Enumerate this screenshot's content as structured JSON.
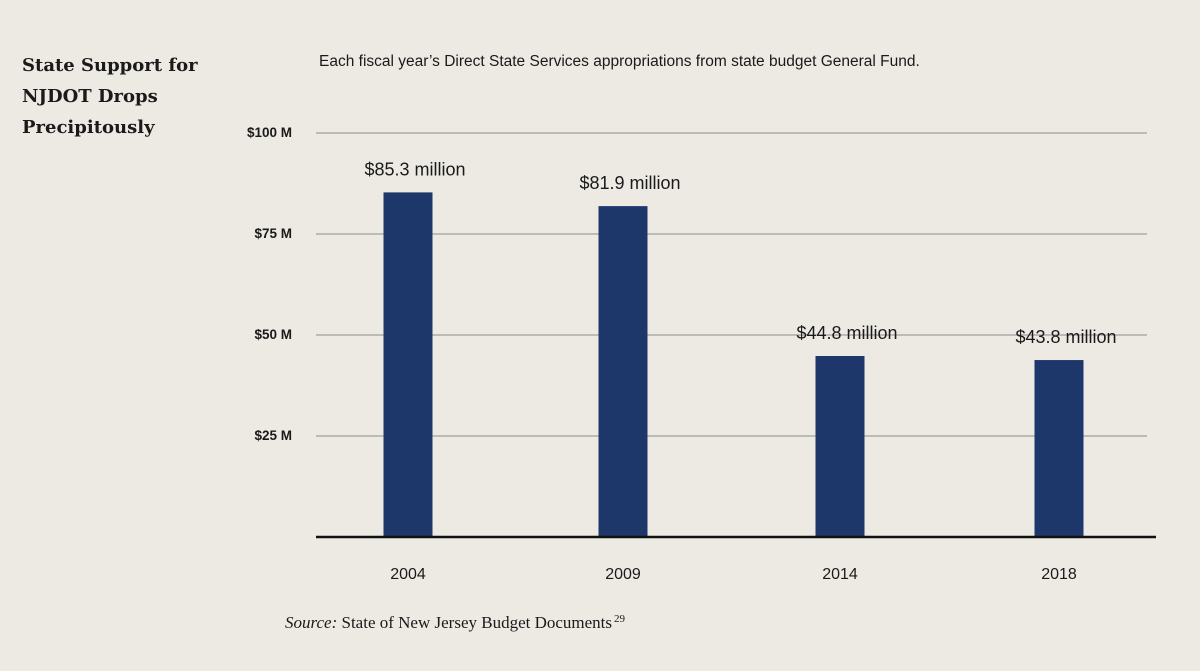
{
  "chart_data": {
    "type": "bar",
    "title": "State Support for NJDOT Drops Precipitously",
    "subtitle": "Each fiscal year’s Direct State Services appropriations from state budget General Fund.",
    "categories": [
      "2004",
      "2009",
      "2014",
      "2018"
    ],
    "values": [
      85.3,
      81.9,
      44.8,
      43.8
    ],
    "data_labels": [
      "$85.3 million",
      "$81.9 million",
      "$44.8 million",
      "$43.8 million"
    ],
    "y_ticks": [
      25,
      50,
      75,
      100
    ],
    "y_tick_labels": [
      "$25 M",
      "$50 M",
      "$75 M",
      "$100 M"
    ],
    "ylim": [
      0,
      100
    ],
    "grid": true,
    "bar_color": "#1e376b",
    "xlabel": "",
    "ylabel": ""
  },
  "source": {
    "label": "Source:",
    "text": "State of New Jersey Budget Documents",
    "footnote": "29"
  }
}
